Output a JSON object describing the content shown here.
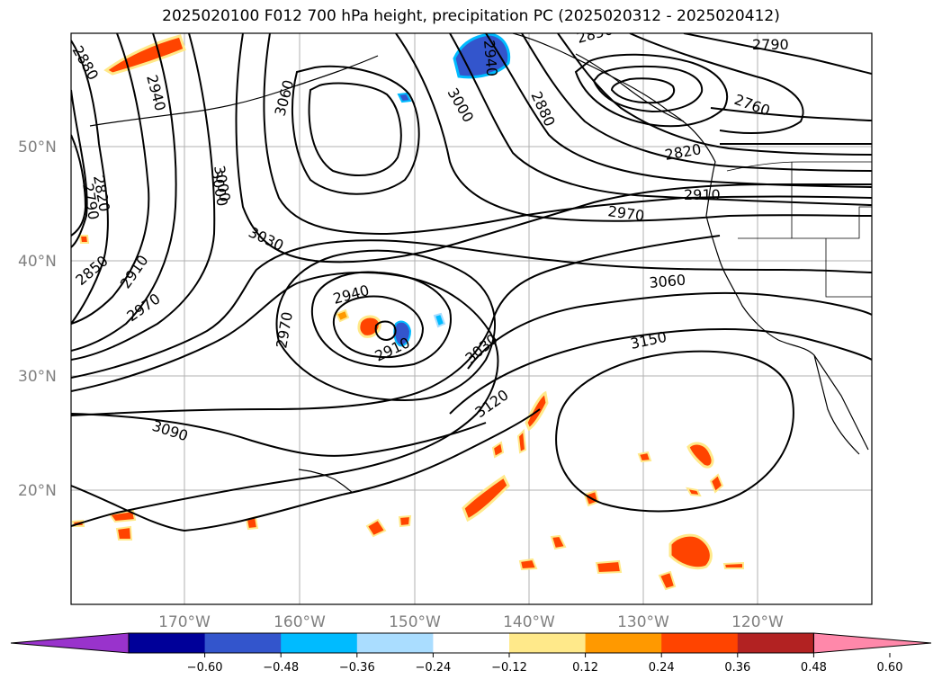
{
  "title": "2025020100 F012 700 hPa height, precipitation PC (2025020312 - 2025020412)",
  "map": {
    "lat_labels": [
      "50°N",
      "40°N",
      "30°N",
      "20°N"
    ],
    "lon_labels": [
      "170°W",
      "160°W",
      "150°W",
      "140°W",
      "130°W",
      "120°W"
    ],
    "contour_labels": [
      "2880",
      "2940",
      "3000",
      "3060",
      "3000",
      "2940",
      "2850",
      "2880",
      "2790",
      "2760",
      "2820",
      "2790",
      "2820",
      "2910",
      "2970",
      "3000",
      "3030",
      "2850",
      "2910",
      "2970",
      "2940",
      "2970",
      "2910",
      "3030",
      "3060",
      "3150",
      "3120",
      "3090"
    ]
  },
  "colorbar": {
    "colors": [
      "#9933cc",
      "#000099",
      "#3355cc",
      "#00bbff",
      "#aaddff",
      "#ffffff",
      "#ffe98a",
      "#ff9900",
      "#ff4400",
      "#b22222",
      "#ff88aa"
    ],
    "tick_labels": [
      "−0.60",
      "−0.48",
      "−0.36",
      "−0.24",
      "−0.12",
      "0.12",
      "0.24",
      "0.36",
      "0.48",
      "0.60"
    ]
  }
}
